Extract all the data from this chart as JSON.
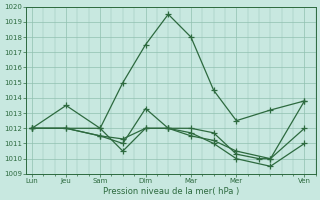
{
  "xlabel": "Pression niveau de la mer( hPa )",
  "bg_color": "#c8e8e0",
  "grid_color": "#90c0b0",
  "line_color": "#2d6a3f",
  "ylim": [
    1009,
    1020
  ],
  "yticks": [
    1009,
    1010,
    1011,
    1012,
    1013,
    1014,
    1015,
    1016,
    1017,
    1018,
    1019,
    1020
  ],
  "xtick_labels": [
    "Lun",
    "Jeu",
    "Sam",
    "Dim",
    "Mar",
    "Mer",
    "Ven"
  ],
  "xtick_positions": [
    0,
    3,
    6,
    10,
    14,
    18,
    24
  ],
  "xlim": [
    -0.5,
    25
  ],
  "lines": [
    {
      "x": [
        0,
        3,
        6,
        8,
        10,
        12,
        14,
        16,
        18,
        21,
        24
      ],
      "y": [
        1012,
        1013.5,
        1012,
        1015,
        1017.5,
        1019.5,
        1018,
        1014.5,
        1012.5,
        1013.2,
        1013.8
      ]
    },
    {
      "x": [
        0,
        3,
        6,
        8,
        10,
        12,
        14,
        16,
        18,
        21,
        24
      ],
      "y": [
        1012,
        1012,
        1011.5,
        1011,
        1013.3,
        1012,
        1011.5,
        1011.2,
        1010.5,
        1010,
        1012
      ]
    },
    {
      "x": [
        0,
        6,
        8,
        10,
        12,
        14,
        16,
        18,
        21,
        24
      ],
      "y": [
        1012,
        1012,
        1010.5,
        1012,
        1012,
        1011.7,
        1011.0,
        1010.0,
        1009.5,
        1011.0
      ]
    },
    {
      "x": [
        0,
        3,
        6,
        8,
        10,
        12,
        14,
        16,
        18,
        20,
        21,
        24
      ],
      "y": [
        1012,
        1012,
        1011.5,
        1011.3,
        1012,
        1012,
        1012,
        1011.7,
        1010.3,
        1010.0,
        1010.0,
        1013.8
      ]
    }
  ]
}
